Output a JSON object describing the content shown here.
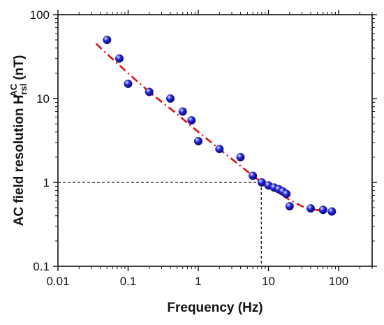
{
  "chart_data": {
    "type": "scatter",
    "xscale": "log",
    "yscale": "log",
    "xlim": [
      0.01,
      300
    ],
    "ylim": [
      0.1,
      100
    ],
    "xlabel": "Frequency (Hz)",
    "ylabel_main": "AC field resolution H",
    "ylabel_sub": "rsl",
    "ylabel_sup": "AC",
    "ylabel_unit": " (nT)",
    "x_ticks": [
      {
        "value": 0.01,
        "label": "0.01"
      },
      {
        "value": 0.1,
        "label": "0.1"
      },
      {
        "value": 1,
        "label": "1"
      },
      {
        "value": 10,
        "label": "10"
      },
      {
        "value": 100,
        "label": "100"
      }
    ],
    "y_ticks": [
      {
        "value": 0.1,
        "label": "0.1"
      },
      {
        "value": 1,
        "label": "1"
      },
      {
        "value": 10,
        "label": "10"
      },
      {
        "value": 100,
        "label": "100"
      }
    ],
    "grid": false,
    "legend": "none",
    "series": [
      {
        "marker_color": "#2323e0",
        "x": [
          0.05,
          0.075,
          0.1,
          0.2,
          0.4,
          0.6,
          0.8,
          1.0,
          2.0,
          4.0,
          6.0,
          8.0,
          10.0,
          12.0,
          14.0,
          16.0,
          18.0,
          20.0,
          40.0,
          60.0,
          80.0
        ],
        "y": [
          50,
          30,
          15,
          12,
          10,
          7,
          5.5,
          3.1,
          2.5,
          2.0,
          1.2,
          1.0,
          0.92,
          0.87,
          0.83,
          0.78,
          0.73,
          0.52,
          0.49,
          0.47,
          0.45
        ]
      }
    ],
    "fit_line": {
      "color": "#dd1111",
      "style": "dash-dot",
      "x": [
        0.035,
        0.05,
        0.1,
        0.2,
        0.5,
        1,
        2,
        5,
        8,
        10,
        15,
        20,
        30,
        40,
        60,
        80
      ],
      "y": [
        45,
        34,
        20,
        12,
        6.5,
        4.0,
        2.5,
        1.35,
        1.0,
        0.88,
        0.72,
        0.62,
        0.52,
        0.48,
        0.46,
        0.45
      ]
    },
    "reference_lines": {
      "color": "#111111",
      "style": "dashed",
      "x": 7.9,
      "y": 1.0
    }
  }
}
